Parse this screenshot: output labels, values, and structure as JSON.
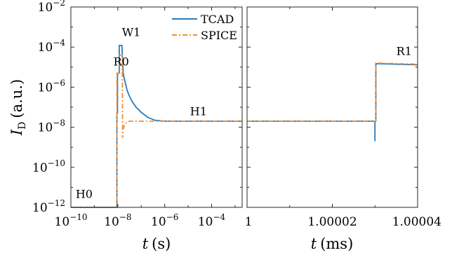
{
  "chart_data": {
    "type": "line",
    "ylabel_var": "I",
    "ylabel_sub": "D",
    "ylabel_unit": "(a.u.)",
    "yscale": "log",
    "ylim": [
      1e-12,
      0.01
    ],
    "yticks": [
      {
        "value": 1e-12,
        "base": "10",
        "exp": "−12"
      },
      {
        "value": 1e-10,
        "base": "10",
        "exp": "−10"
      },
      {
        "value": 1e-08,
        "base": "10",
        "exp": "−8"
      },
      {
        "value": 1e-06,
        "base": "10",
        "exp": "−6"
      },
      {
        "value": 0.0001,
        "base": "10",
        "exp": "−4"
      },
      {
        "value": 0.01,
        "base": "10",
        "exp": "−2"
      }
    ],
    "legend": {
      "placement": "top-right of left panel",
      "entries": [
        {
          "name": "TCAD",
          "color": "#2b7bba",
          "dash": "solid"
        },
        {
          "name": "SPICE",
          "color": "#f28e2b",
          "dash": "dashdot"
        }
      ]
    },
    "panels": [
      {
        "id": "left",
        "xscale": "log",
        "xlabel_var": "t",
        "xlabel_unit": "(s)",
        "xlim": [
          1e-10,
          0.002
        ],
        "xticks": [
          {
            "value": 1e-10,
            "base": "10",
            "exp": "−10"
          },
          {
            "value": 1e-08,
            "base": "10",
            "exp": "−8"
          },
          {
            "value": 1e-06,
            "base": "10",
            "exp": "−6"
          },
          {
            "value": 0.0001,
            "base": "10",
            "exp": "−4"
          }
        ],
        "annotations": [
          {
            "text": "H0",
            "x": 1.6e-10,
            "y": 3e-12
          },
          {
            "text": "R0",
            "x": 6.5e-09,
            "y": 1.2e-05
          },
          {
            "text": "W1",
            "x": 1.5e-08,
            "y": 0.00035
          },
          {
            "text": "H1",
            "x": 1.2e-05,
            "y": 4e-08
          }
        ],
        "series": [
          {
            "name": "TCAD",
            "x": [
              1e-10,
              9.2e-09,
              9.2e-09,
              9.7e-09,
              9.7e-09,
              1.15e-08,
              1.15e-08,
              1.4e-08,
              1.5e-08,
              1.7e-08,
              2e-08,
              2.5e-08,
              3e-08,
              4e-08,
              6e-08,
              1e-07,
              2e-07,
              4e-07,
              1e-06,
              0.002
            ],
            "y": [
              1e-12,
              1e-12,
              5e-08,
              5e-08,
              5e-06,
              5e-06,
              0.00012,
              0.00012,
              0.00012,
              5e-06,
              2e-06,
              7e-07,
              4e-07,
              2e-07,
              1e-07,
              5.5e-08,
              3e-08,
              2.2e-08,
              2e-08,
              2e-08
            ]
          },
          {
            "name": "SPICE",
            "x": [
              1e-10,
              9.2e-09,
              9.2e-09,
              1.2e-08,
              1.2e-08,
              1.45e-08,
              1.55e-08,
              1.6e-08,
              1.7e-08,
              2e-08,
              3e-08,
              1e-07,
              3e-07,
              0.002
            ],
            "y": [
              1e-12,
              1e-12,
              5e-06,
              5e-06,
              4e-05,
              4e-05,
              4e-05,
              3e-09,
              8e-09,
              1.5e-08,
              2e-08,
              2e-08,
              2e-08,
              2e-08
            ]
          }
        ]
      },
      {
        "id": "right",
        "xscale": "linear",
        "xlabel_var": "t",
        "xlabel_unit": "(ms)",
        "xlim": [
          1,
          1.00004
        ],
        "xticks": [
          {
            "value": 1,
            "label": "1"
          },
          {
            "value": 1.00002,
            "label": "1.00002"
          },
          {
            "value": 1.00004,
            "label": "1.00004"
          }
        ],
        "annotations": [
          {
            "text": "R1",
            "x": 1.000035,
            "y": 4e-05
          }
        ],
        "series": [
          {
            "name": "TCAD",
            "x": [
              1,
              1.00003,
              1.00003,
              1.00003,
              1.0000302,
              1.0000302,
              1.00004
            ],
            "y": [
              2e-08,
              2e-08,
              2e-09,
              2e-08,
              2e-08,
              1.5e-05,
              1.3e-05
            ]
          },
          {
            "name": "SPICE",
            "x": [
              1,
              1.00003,
              1.0000302,
              1.0000302,
              1.00004
            ],
            "y": [
              2e-08,
              2e-08,
              2e-08,
              1.6e-05,
              1.4e-05
            ]
          }
        ]
      }
    ]
  }
}
